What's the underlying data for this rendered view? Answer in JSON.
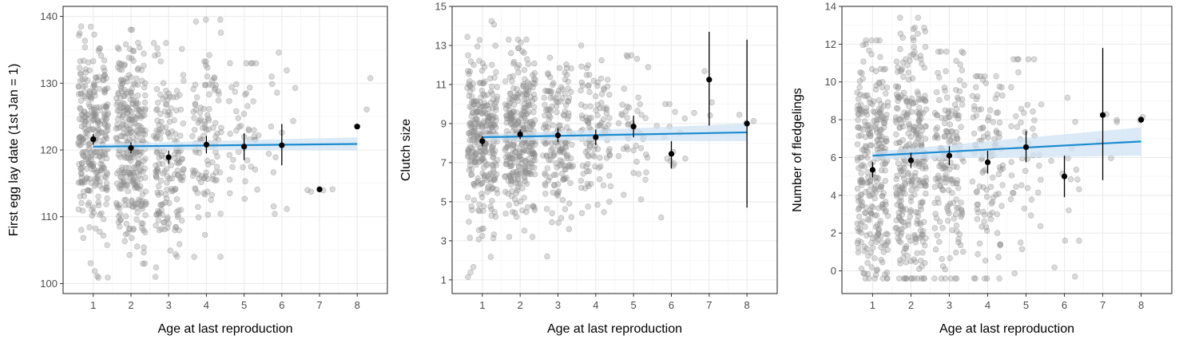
{
  "colors": {
    "panel_background": "#ffffff",
    "panel_border": "#333333",
    "grid_major": "#ebebeb",
    "grid_minor": "#f5f5f5",
    "raw_points": "#8c8c8c",
    "mean_points": "#000000",
    "trend_line": "#1a8bd0",
    "confidence_band": "#cfe3f3"
  },
  "chart_data": [
    {
      "type": "scatter",
      "xlabel": "Age at last reproduction",
      "ylabel": "First egg lay date (1st Jan = 1)",
      "xlim": [
        0.2,
        8.8
      ],
      "ylim": [
        98.5,
        141.5
      ],
      "x_ticks": [
        1,
        2,
        3,
        4,
        5,
        6,
        7,
        8
      ],
      "y_ticks": [
        100,
        110,
        120,
        130,
        140
      ],
      "grid": true,
      "raw_points": {
        "description": "jittered individual observations (semi-transparent grey)",
        "columns": [
          {
            "x": 1,
            "n": 300,
            "min": 100.5,
            "max": 138.5,
            "mean": 121.5,
            "sd": 7.5
          },
          {
            "x": 2,
            "n": 320,
            "min": 100,
            "max": 138,
            "mean": 120.3,
            "sd": 7.5
          },
          {
            "x": 3,
            "n": 170,
            "min": 101,
            "max": 136,
            "mean": 119,
            "sd": 7
          },
          {
            "x": 4,
            "n": 110,
            "min": 104,
            "max": 139.5,
            "mean": 121,
            "sd": 7.5
          },
          {
            "x": 5,
            "n": 45,
            "min": 106,
            "max": 133,
            "mean": 120.5,
            "sd": 6.5
          },
          {
            "x": 6,
            "n": 15,
            "min": 107,
            "max": 138,
            "mean": 121,
            "sd": 8
          },
          {
            "x": 7,
            "n": 4,
            "min": 113.5,
            "max": 114.5,
            "mean": 114,
            "sd": 0.4
          },
          {
            "x": 8,
            "n": 3,
            "min": 116,
            "max": 131.5,
            "mean": 123.5,
            "sd": 7
          }
        ]
      },
      "means": [
        {
          "x": 1,
          "y": 121.6,
          "lower": 120.8,
          "upper": 122.4
        },
        {
          "x": 2,
          "y": 120.3,
          "lower": 119.5,
          "upper": 121.1
        },
        {
          "x": 3,
          "y": 118.9,
          "lower": 117.9,
          "upper": 119.9
        },
        {
          "x": 4,
          "y": 120.8,
          "lower": 119.5,
          "upper": 122.1
        },
        {
          "x": 5,
          "y": 120.5,
          "lower": 118.5,
          "upper": 122.5
        },
        {
          "x": 6,
          "y": 120.7,
          "lower": 117.7,
          "upper": 123.9
        },
        {
          "x": 7,
          "y": 114.1,
          "lower": 114.1,
          "upper": 114.1
        },
        {
          "x": 8,
          "y": 123.5,
          "lower": 123.5,
          "upper": 123.5
        }
      ],
      "trend": {
        "x": [
          1,
          8
        ],
        "y": [
          120.5,
          120.9
        ],
        "ci_lower": [
          120.1,
          119.9
        ],
        "ci_upper": [
          120.9,
          121.9
        ]
      }
    },
    {
      "type": "scatter",
      "xlabel": "Age at last reproduction",
      "ylabel": "Clutch size",
      "xlim": [
        0.2,
        8.8
      ],
      "ylim": [
        0.3,
        15
      ],
      "x_ticks": [
        1,
        2,
        3,
        4,
        5,
        6,
        7,
        8
      ],
      "y_ticks": [
        1,
        3,
        5,
        7,
        9,
        11,
        13,
        15
      ],
      "grid": true,
      "raw_points": {
        "description": "jittered individual observations (semi-transparent grey)",
        "columns": [
          {
            "x": 1,
            "n": 300,
            "min": 1,
            "max": 14.3,
            "mean": 8.2,
            "sd": 2.1
          },
          {
            "x": 2,
            "n": 320,
            "min": 3.2,
            "max": 13.3,
            "mean": 8.5,
            "sd": 2
          },
          {
            "x": 3,
            "n": 170,
            "min": 2.2,
            "max": 14.3,
            "mean": 8.4,
            "sd": 2
          },
          {
            "x": 4,
            "n": 110,
            "min": 3.2,
            "max": 13,
            "mean": 8.3,
            "sd": 2
          },
          {
            "x": 5,
            "n": 45,
            "min": 4.5,
            "max": 12.5,
            "mean": 8.8,
            "sd": 1.8
          },
          {
            "x": 6,
            "n": 15,
            "min": 4,
            "max": 10,
            "mean": 7.5,
            "sd": 1.8
          },
          {
            "x": 7,
            "n": 4,
            "min": 9,
            "max": 13,
            "mean": 11.2,
            "sd": 1.5
          },
          {
            "x": 8,
            "n": 3,
            "min": 8,
            "max": 9.5,
            "mean": 9,
            "sd": 0.5
          }
        ]
      },
      "means": [
        {
          "x": 1,
          "y": 8.1,
          "lower": 7.85,
          "upper": 8.35
        },
        {
          "x": 2,
          "y": 8.45,
          "lower": 8.2,
          "upper": 8.7
        },
        {
          "x": 3,
          "y": 8.4,
          "lower": 8.05,
          "upper": 8.75
        },
        {
          "x": 4,
          "y": 8.3,
          "lower": 7.9,
          "upper": 8.7
        },
        {
          "x": 5,
          "y": 8.85,
          "lower": 8.3,
          "upper": 9.4
        },
        {
          "x": 6,
          "y": 7.45,
          "lower": 6.7,
          "upper": 8.1
        },
        {
          "x": 7,
          "y": 11.25,
          "lower": 8.9,
          "upper": 13.7
        },
        {
          "x": 8,
          "y": 9,
          "lower": 4.7,
          "upper": 13.3
        }
      ],
      "trend": {
        "x": [
          1,
          8
        ],
        "y": [
          8.3,
          8.55
        ],
        "ci_lower": [
          8.15,
          8.1
        ],
        "ci_upper": [
          8.45,
          9.0
        ]
      }
    },
    {
      "type": "scatter",
      "xlabel": "Age at last reproduction",
      "ylabel": "Number of fledgelings",
      "xlim": [
        0.2,
        8.8
      ],
      "ylim": [
        -1.2,
        14
      ],
      "x_ticks": [
        1,
        2,
        3,
        4,
        5,
        6,
        7,
        8
      ],
      "y_ticks": [
        0,
        2,
        4,
        6,
        8,
        10,
        12,
        14
      ],
      "grid": true,
      "raw_points": {
        "description": "jittered individual observations (semi-transparent grey)",
        "columns": [
          {
            "x": 1,
            "n": 300,
            "min": -0.4,
            "max": 12.2,
            "mean": 5.5,
            "sd": 3.3
          },
          {
            "x": 2,
            "n": 320,
            "min": -0.4,
            "max": 13.4,
            "mean": 5.9,
            "sd": 3.3
          },
          {
            "x": 3,
            "n": 170,
            "min": -0.4,
            "max": 11.6,
            "mean": 6,
            "sd": 3.2
          },
          {
            "x": 4,
            "n": 110,
            "min": -0.4,
            "max": 10.3,
            "mean": 5.8,
            "sd": 3.2
          },
          {
            "x": 5,
            "n": 45,
            "min": -0.4,
            "max": 11.2,
            "mean": 6.5,
            "sd": 3
          },
          {
            "x": 6,
            "n": 15,
            "min": -0.3,
            "max": 9.8,
            "mean": 5,
            "sd": 2.8
          },
          {
            "x": 7,
            "n": 5,
            "min": 4.8,
            "max": 9.9,
            "mean": 8,
            "sd": 1.6
          },
          {
            "x": 8,
            "n": 3,
            "min": 7.5,
            "max": 8.3,
            "mean": 8,
            "sd": 0.3
          }
        ]
      },
      "means": [
        {
          "x": 1,
          "y": 5.35,
          "lower": 4.95,
          "upper": 5.75
        },
        {
          "x": 2,
          "y": 5.85,
          "lower": 5.45,
          "upper": 6.25
        },
        {
          "x": 3,
          "y": 6.1,
          "lower": 5.6,
          "upper": 6.6
        },
        {
          "x": 4,
          "y": 5.75,
          "lower": 5.15,
          "upper": 6.35
        },
        {
          "x": 5,
          "y": 6.55,
          "lower": 5.75,
          "upper": 7.4
        },
        {
          "x": 6,
          "y": 5,
          "lower": 3.9,
          "upper": 6.1
        },
        {
          "x": 7,
          "y": 8.25,
          "lower": 4.8,
          "upper": 11.8
        },
        {
          "x": 8,
          "y": 8,
          "lower": 8,
          "upper": 8
        }
      ],
      "trend": {
        "x": [
          1,
          8
        ],
        "y": [
          6.1,
          6.85
        ],
        "ci_lower": [
          5.9,
          6.1
        ],
        "ci_upper": [
          6.3,
          7.6
        ]
      }
    }
  ]
}
